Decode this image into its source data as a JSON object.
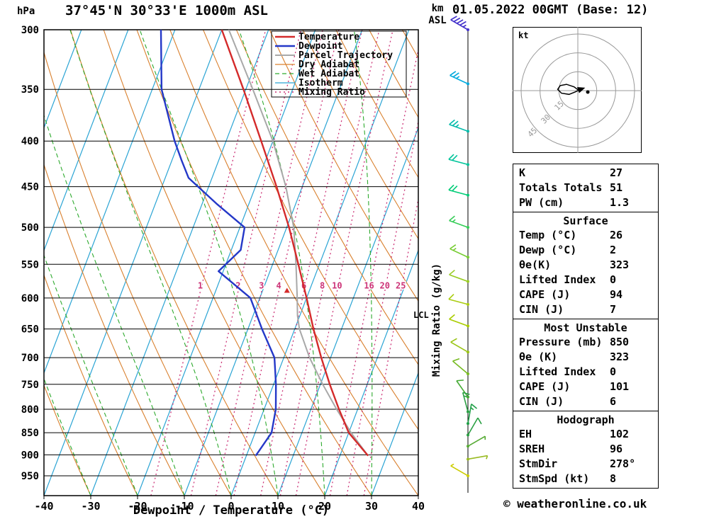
{
  "header": {
    "pressure_unit": "hPa",
    "station": "37°45'N 30°33'E 1000m ASL",
    "km": "km",
    "asl": "ASL",
    "datetime": "01.05.2022 00GMT (Base: 12)"
  },
  "legend": [
    {
      "label": "Temperature",
      "color": "#d42a2a",
      "width": 2.4,
      "dash": ""
    },
    {
      "label": "Dewpoint",
      "color": "#2438c8",
      "width": 2.4,
      "dash": ""
    },
    {
      "label": "Parcel Trajectory",
      "color": "#a8a8a8",
      "width": 2.0,
      "dash": ""
    },
    {
      "label": "Dry Adiabat",
      "color": "#d9802e",
      "width": 1.2,
      "dash": ""
    },
    {
      "label": "Wet Adiabat",
      "color": "#2eaa2e",
      "width": 1.2,
      "dash": "6 4"
    },
    {
      "label": "Isotherm",
      "color": "#2aa4d4",
      "width": 1.2,
      "dash": ""
    },
    {
      "label": "Mixing Ratio",
      "color": "#cc3377",
      "width": 1.4,
      "dash": "2 4"
    }
  ],
  "axes": {
    "xlabel": "Dewpoint / Temperature (°C)",
    "x_ticks": [
      -40,
      -30,
      -20,
      -10,
      0,
      10,
      20,
      30,
      40
    ],
    "pressure_ticks": [
      300,
      350,
      400,
      450,
      500,
      550,
      600,
      650,
      700,
      750,
      800,
      850,
      900,
      950
    ],
    "right_label": "Mixing Ratio (g/kg)",
    "lcl_label": "LCL"
  },
  "hodograph": {
    "unit_label": "kt",
    "rings_kt": [
      15,
      30,
      45
    ],
    "trace_kt": [
      [
        1,
        0
      ],
      [
        -3,
        3
      ],
      [
        -9,
        5
      ],
      [
        -14,
        4
      ],
      [
        -16,
        1
      ],
      [
        -13,
        -2
      ],
      [
        -7,
        -3
      ],
      [
        -2,
        -1
      ],
      [
        2,
        1
      ],
      [
        5,
        2
      ]
    ],
    "storm_motion_kt": [
      7.9,
      -1.1
    ],
    "ring_color": "#999999",
    "trace_color": "#000000"
  },
  "stats": {
    "indices": {
      "rows": [
        [
          "K",
          "27"
        ],
        [
          "Totals Totals",
          "51"
        ],
        [
          "PW (cm)",
          "1.3"
        ]
      ]
    },
    "surface": {
      "title": "Surface",
      "rows": [
        [
          "Temp (°C)",
          "26"
        ],
        [
          "Dewp (°C)",
          "2"
        ],
        [
          "θe(K)",
          "323"
        ],
        [
          "Lifted Index",
          "0"
        ],
        [
          "CAPE (J)",
          "94"
        ],
        [
          "CIN (J)",
          "7"
        ]
      ]
    },
    "most_unstable": {
      "title": "Most Unstable",
      "rows": [
        [
          "Pressure (mb)",
          "850"
        ],
        [
          "θe (K)",
          "323"
        ],
        [
          "Lifted Index",
          "0"
        ],
        [
          "CAPE (J)",
          "101"
        ],
        [
          "CIN (J)",
          "6"
        ]
      ]
    },
    "hodograph": {
      "title": "Hodograph",
      "rows": [
        [
          "EH",
          "102"
        ],
        [
          "SREH",
          "96"
        ],
        [
          "StmDir",
          "278°"
        ],
        [
          "StmSpd (kt)",
          "8"
        ]
      ]
    }
  },
  "footer": {
    "copyright": "© weatheronline.co.uk"
  },
  "chart_data": {
    "type": "skewt-logp",
    "pressure_range": [
      300,
      1000
    ],
    "temp_range": [
      -40,
      40
    ],
    "skew_degC": 38,
    "isotherm_step": 10,
    "dry_adiabat_thetas": [
      -40,
      -30,
      -20,
      -10,
      0,
      10,
      20,
      30,
      40,
      50,
      60,
      70,
      80,
      90,
      100,
      110,
      120
    ],
    "wet_adiabat_thetaws": [
      -60,
      -50,
      -40,
      -30,
      -20,
      -10,
      0,
      10,
      20,
      30,
      40
    ],
    "mixing_ratio_values": [
      1,
      2,
      3,
      4,
      6,
      8,
      10,
      16,
      20,
      25
    ],
    "mixing_label_pressure": 590,
    "lcl_pressure": 628,
    "parcel_marker": {
      "pressure": 592,
      "mixing_ratio_gkg": 4.6,
      "color": "#d42a2a"
    },
    "temperature_profile": [
      [
        902,
        26
      ],
      [
        850,
        20
      ],
      [
        800,
        16
      ],
      [
        750,
        12
      ],
      [
        700,
        8
      ],
      [
        650,
        4
      ],
      [
        600,
        0
      ],
      [
        550,
        -4.5
      ],
      [
        500,
        -9.5
      ],
      [
        450,
        -15.5
      ],
      [
        400,
        -22.5
      ],
      [
        350,
        -30.5
      ],
      [
        300,
        -40
      ]
    ],
    "dewpoint_profile": [
      [
        902,
        2
      ],
      [
        850,
        3.5
      ],
      [
        800,
        2.5
      ],
      [
        750,
        0.5
      ],
      [
        700,
        -2
      ],
      [
        650,
        -7
      ],
      [
        600,
        -12
      ],
      [
        560,
        -21
      ],
      [
        530,
        -18
      ],
      [
        500,
        -19
      ],
      [
        470,
        -27
      ],
      [
        440,
        -35
      ],
      [
        420,
        -38
      ],
      [
        400,
        -41
      ],
      [
        350,
        -48
      ],
      [
        300,
        -53
      ]
    ],
    "parcel_profile": [
      [
        902,
        26
      ],
      [
        850,
        20.5
      ],
      [
        800,
        15.5
      ],
      [
        750,
        10.5
      ],
      [
        700,
        5.5
      ],
      [
        650,
        1
      ],
      [
        628,
        -0.5
      ],
      [
        600,
        -2
      ],
      [
        550,
        -5
      ],
      [
        500,
        -8.5
      ],
      [
        450,
        -13.5
      ],
      [
        400,
        -20
      ],
      [
        350,
        -28.5
      ],
      [
        300,
        -38.5
      ]
    ],
    "wind_barbs": [
      {
        "p": 300,
        "speed_kt": 45,
        "dir_deg": 300,
        "color": "#4433cc"
      },
      {
        "p": 345,
        "speed_kt": 25,
        "dir_deg": 295,
        "color": "#00aadd"
      },
      {
        "p": 390,
        "speed_kt": 25,
        "dir_deg": 290,
        "color": "#00bbaa"
      },
      {
        "p": 425,
        "speed_kt": 20,
        "dir_deg": 285,
        "color": "#00c49a"
      },
      {
        "p": 460,
        "speed_kt": 20,
        "dir_deg": 285,
        "color": "#00cc77"
      },
      {
        "p": 500,
        "speed_kt": 15,
        "dir_deg": 290,
        "color": "#33cc55"
      },
      {
        "p": 540,
        "speed_kt": 15,
        "dir_deg": 295,
        "color": "#77cc33"
      },
      {
        "p": 575,
        "speed_kt": 10,
        "dir_deg": 290,
        "color": "#99cc22"
      },
      {
        "p": 610,
        "speed_kt": 10,
        "dir_deg": 285,
        "color": "#aacc11"
      },
      {
        "p": 645,
        "speed_kt": 10,
        "dir_deg": 290,
        "color": "#aacc00"
      },
      {
        "p": 690,
        "speed_kt": 10,
        "dir_deg": 300,
        "color": "#99c414"
      },
      {
        "p": 730,
        "speed_kt": 10,
        "dir_deg": 310,
        "color": "#77bb22"
      },
      {
        "p": 775,
        "speed_kt": 10,
        "dir_deg": 325,
        "color": "#44aa33"
      },
      {
        "p": 805,
        "speed_kt": 15,
        "dir_deg": 345,
        "color": "#2aa043"
      },
      {
        "p": 830,
        "speed_kt": 15,
        "dir_deg": 10,
        "color": "#1f9f47"
      },
      {
        "p": 855,
        "speed_kt": 10,
        "dir_deg": 30,
        "color": "#2aa043"
      },
      {
        "p": 880,
        "speed_kt": 5,
        "dir_deg": 60,
        "color": "#55aa33"
      },
      {
        "p": 910,
        "speed_kt": 5,
        "dir_deg": 80,
        "color": "#99bb22"
      },
      {
        "p": 950,
        "speed_kt": 5,
        "dir_deg": 300,
        "color": "#cccc00"
      }
    ],
    "colors": {
      "temperature": "#d42a2a",
      "dewpoint": "#2438c8",
      "parcel": "#a8a8a8",
      "dry_adiabat": "#d9802e",
      "wet_adiabat": "#2eaa2e",
      "isotherm": "#2aa4d4",
      "mixing_ratio": "#cc3377",
      "grid": "#000000"
    }
  }
}
